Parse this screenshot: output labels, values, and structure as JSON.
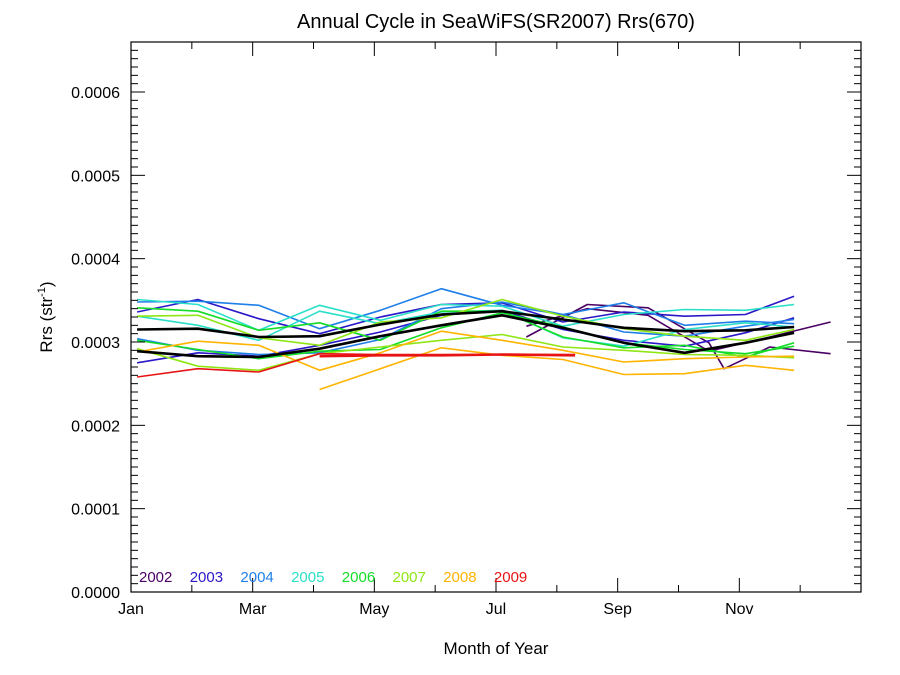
{
  "chart_data": {
    "type": "line",
    "title": "Annual Cycle in SeaWiFS(SR2007) Rrs(670)",
    "xlabel": "Month of Year",
    "ylabel_main": "Rrs (str",
    "ylabel_sup": "-1",
    "ylabel_close": ")",
    "x_ticks": [
      {
        "label": "Jan",
        "value": 1
      },
      {
        "label": "Mar",
        "value": 3
      },
      {
        "label": "May",
        "value": 5
      },
      {
        "label": "Jul",
        "value": 7
      },
      {
        "label": "Sep",
        "value": 9
      },
      {
        "label": "Nov",
        "value": 11
      }
    ],
    "y_ticks": [
      "0.0000",
      "0.0001",
      "0.0002",
      "0.0003",
      "0.0004",
      "0.0005",
      "0.0006"
    ],
    "y_tick_values": [
      0,
      0.0001,
      0.0002,
      0.0003,
      0.0004,
      0.0005,
      0.0006
    ],
    "xlim": [
      1,
      13
    ],
    "ylim": [
      0,
      0.00066
    ],
    "grid": false,
    "legend_position": "bottom-left",
    "series": [
      {
        "name": "2002",
        "color": "#4b0064",
        "lines": [
          [
            [
              7.5,
              0.000306
            ],
            [
              8.5,
              0.000345
            ],
            [
              9.5,
              0.000341
            ],
            [
              10.5,
              0.000299
            ],
            [
              10.75,
              0.000268
            ],
            [
              11.5,
              0.000294
            ],
            [
              12.5,
              0.000286
            ]
          ],
          [
            [
              7.5,
              0.000319
            ],
            [
              8.5,
              0.00034
            ],
            [
              9.5,
              0.000332
            ],
            [
              10.5,
              0.000289
            ],
            [
              11.5,
              0.000306
            ],
            [
              12.5,
              0.000324
            ]
          ]
        ]
      },
      {
        "name": "2003",
        "color": "#2a18c8",
        "lines": [
          [
            [
              1.1,
              0.000336
            ],
            [
              2.1,
              0.000351
            ],
            [
              3.1,
              0.000328
            ],
            [
              4.1,
              0.00031
            ],
            [
              5.1,
              0.00033
            ],
            [
              6.1,
              0.000345
            ],
            [
              7.1,
              0.000347
            ],
            [
              8.1,
              0.000324
            ],
            [
              9.1,
              0.000336
            ],
            [
              10.1,
              0.000331
            ],
            [
              11.1,
              0.000333
            ],
            [
              11.9,
              0.000355
            ]
          ],
          [
            [
              1.1,
              0.000275
            ],
            [
              2.1,
              0.000287
            ],
            [
              3.1,
              0.000283
            ],
            [
              4.1,
              0.000296
            ],
            [
              5.1,
              0.000312
            ],
            [
              6.1,
              0.000332
            ],
            [
              7.1,
              0.000338
            ],
            [
              8.1,
              0.000315
            ],
            [
              9.1,
              0.000302
            ],
            [
              10.1,
              0.000295
            ],
            [
              11.1,
              0.000311
            ],
            [
              11.9,
              0.000329
            ]
          ]
        ]
      },
      {
        "name": "2004",
        "color": "#1f7fe8",
        "lines": [
          [
            [
              1.1,
              0.000348
            ],
            [
              2.1,
              0.000349
            ],
            [
              3.1,
              0.000344
            ],
            [
              4.1,
              0.000316
            ],
            [
              5.1,
              0.000338
            ],
            [
              6.1,
              0.000364
            ],
            [
              7.1,
              0.000344
            ],
            [
              8.1,
              0.000333
            ],
            [
              9.1,
              0.000347
            ],
            [
              10.1,
              0.00032
            ],
            [
              11.1,
              0.000325
            ],
            [
              11.9,
              0.000322
            ]
          ],
          [
            [
              1.1,
              0.000304
            ],
            [
              2.1,
              0.00029
            ],
            [
              3.1,
              0.000285
            ],
            [
              4.1,
              0.000287
            ],
            [
              5.1,
              0.000303
            ],
            [
              6.1,
              0.00034
            ],
            [
              7.1,
              0.000348
            ],
            [
              8.1,
              0.000333
            ],
            [
              9.1,
              0.000312
            ],
            [
              10.1,
              0.000307
            ],
            [
              11.1,
              0.000319
            ],
            [
              11.9,
              0.000327
            ]
          ]
        ]
      },
      {
        "name": "2005",
        "color": "#2ae0c8",
        "lines": [
          [
            [
              1.1,
              0.000351
            ],
            [
              2.1,
              0.000345
            ],
            [
              3.1,
              0.000314
            ],
            [
              4.1,
              0.000344
            ],
            [
              5.1,
              0.000326
            ],
            [
              6.1,
              0.000345
            ],
            [
              7.1,
              0.000343
            ],
            [
              8.1,
              0.000319
            ],
            [
              9.1,
              0.000333
            ],
            [
              10.1,
              0.000339
            ],
            [
              11.1,
              0.000338
            ],
            [
              11.9,
              0.000345
            ]
          ],
          [
            [
              1.1,
              0.000331
            ],
            [
              2.1,
              0.00032
            ],
            [
              3.1,
              0.000302
            ],
            [
              4.1,
              0.000337
            ],
            [
              5.1,
              0.000322
            ],
            [
              6.1,
              0.000336
            ],
            [
              7.1,
              0.000338
            ],
            [
              8.1,
              0.000305
            ],
            [
              9.1,
              0.000295
            ],
            [
              10.1,
              0.000315
            ],
            [
              11.1,
              0.000323
            ],
            [
              11.9,
              0.000318
            ]
          ]
        ]
      },
      {
        "name": "2006",
        "color": "#14dc28",
        "lines": [
          [
            [
              1.1,
              0.000341
            ],
            [
              2.1,
              0.000337
            ],
            [
              3.1,
              0.000314
            ],
            [
              4.1,
              0.000323
            ],
            [
              5.1,
              0.000302
            ],
            [
              6.1,
              0.000337
            ],
            [
              7.1,
              0.000337
            ],
            [
              8.1,
              0.000306
            ],
            [
              9.1,
              0.000293
            ],
            [
              10.1,
              0.000296
            ],
            [
              11.1,
              0.000282
            ],
            [
              11.9,
              0.000299
            ]
          ],
          [
            [
              1.1,
              0.000302
            ],
            [
              2.1,
              0.000291
            ],
            [
              3.1,
              0.00028
            ],
            [
              4.1,
              0.000289
            ],
            [
              5.1,
              0.000291
            ],
            [
              6.1,
              0.000317
            ],
            [
              7.1,
              0.000335
            ],
            [
              8.1,
              0.000318
            ],
            [
              9.1,
              0.000299
            ],
            [
              10.1,
              0.000291
            ],
            [
              11.1,
              0.000286
            ],
            [
              11.9,
              0.000295
            ]
          ]
        ]
      },
      {
        "name": "2007",
        "color": "#8fe614",
        "lines": [
          [
            [
              1.1,
              0.000331
            ],
            [
              2.1,
              0.000332
            ],
            [
              3.1,
              0.000305
            ],
            [
              4.1,
              0.000296
            ],
            [
              5.1,
              0.000324
            ],
            [
              6.1,
              0.000329
            ],
            [
              7.1,
              0.000351
            ],
            [
              8.1,
              0.000331
            ],
            [
              9.1,
              0.000316
            ],
            [
              10.1,
              0.000307
            ],
            [
              11.1,
              0.000302
            ],
            [
              11.9,
              0.000315
            ]
          ],
          [
            [
              1.1,
              0.000292
            ],
            [
              2.1,
              0.000271
            ],
            [
              3.1,
              0.000266
            ],
            [
              4.1,
              0.000286
            ],
            [
              5.1,
              0.000294
            ],
            [
              6.1,
              0.000302
            ],
            [
              7.1,
              0.000309
            ],
            [
              8.1,
              0.000294
            ],
            [
              9.1,
              0.00029
            ],
            [
              10.1,
              0.000285
            ],
            [
              11.1,
              0.000284
            ],
            [
              11.9,
              0.000281
            ]
          ]
        ]
      },
      {
        "name": "2008",
        "color": "#ffb400",
        "lines": [
          [
            [
              1.1,
              0.000288
            ],
            [
              2.1,
              0.000301
            ],
            [
              3.1,
              0.000296
            ],
            [
              4.1,
              0.000266
            ],
            [
              5.1,
              0.000287
            ],
            [
              6.1,
              0.000313
            ],
            [
              7.1,
              0.000302
            ],
            [
              8.1,
              0.00029
            ],
            [
              9.1,
              0.000276
            ],
            [
              10.1,
              0.00028
            ],
            [
              11.1,
              0.000282
            ],
            [
              11.9,
              0.000283
            ]
          ],
          [
            [
              4.1,
              0.000243
            ],
            [
              5.1,
              0.000268
            ],
            [
              6.1,
              0.000293
            ],
            [
              7.1,
              0.000284
            ],
            [
              8.1,
              0.000279
            ],
            [
              9.1,
              0.000261
            ],
            [
              10.1,
              0.000262
            ],
            [
              11.1,
              0.000272
            ],
            [
              11.9,
              0.000266
            ]
          ]
        ]
      },
      {
        "name": "2009",
        "color": "#e81414",
        "lines": [
          [
            [
              1.1,
              0.000258
            ],
            [
              2.1,
              0.000268
            ],
            [
              3.1,
              0.000264
            ],
            [
              4.1,
              0.000286
            ],
            [
              5.1,
              0.000285
            ],
            [
              6.1,
              0.000285
            ],
            [
              7.1,
              0.000285
            ],
            [
              8.3,
              0.000285
            ]
          ],
          [
            [
              4.1,
              0.000283
            ],
            [
              5.1,
              0.000284
            ],
            [
              6.1,
              0.000284
            ],
            [
              7.1,
              0.000285
            ],
            [
              8.3,
              0.000284
            ]
          ]
        ]
      },
      {
        "name": "",
        "color": "#000000",
        "lines": [
          [
            [
              1.1,
              0.000315
            ],
            [
              2.1,
              0.000316
            ],
            [
              3.1,
              0.000306
            ],
            [
              4.1,
              0.000307
            ],
            [
              5.1,
              0.000321
            ],
            [
              6.1,
              0.000333
            ],
            [
              7.1,
              0.000337
            ],
            [
              8.1,
              0.000327
            ],
            [
              9.1,
              0.000317
            ],
            [
              10.1,
              0.000313
            ],
            [
              11.1,
              0.000314
            ],
            [
              11.9,
              0.000318
            ]
          ],
          [
            [
              1.1,
              0.000289
            ],
            [
              2.1,
              0.000283
            ],
            [
              3.1,
              0.000282
            ],
            [
              4.1,
              0.000292
            ],
            [
              5.1,
              0.000307
            ],
            [
              6.1,
              0.00032
            ],
            [
              7.1,
              0.000332
            ],
            [
              8.1,
              0.000317
            ],
            [
              9.1,
              0.000299
            ],
            [
              10.1,
              0.000287
            ],
            [
              11.1,
              0.000299
            ],
            [
              11.9,
              0.000311
            ]
          ]
        ]
      }
    ],
    "legend": [
      {
        "label": "2002",
        "color": "#4b0064"
      },
      {
        "label": "2003",
        "color": "#2a18c8"
      },
      {
        "label": "2004",
        "color": "#1f7fe8"
      },
      {
        "label": "2005",
        "color": "#2ae0c8"
      },
      {
        "label": "2006",
        "color": "#14dc28"
      },
      {
        "label": "2007",
        "color": "#8fe614"
      },
      {
        "label": "2008",
        "color": "#ffb400"
      },
      {
        "label": "2009",
        "color": "#e81414"
      }
    ]
  }
}
